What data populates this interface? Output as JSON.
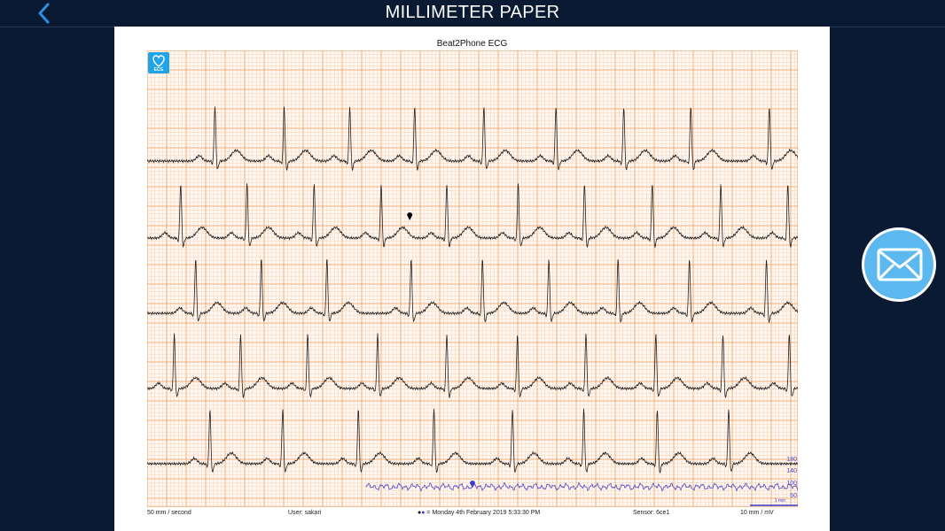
{
  "header": {
    "title": "MILLIMETER PAPER",
    "back_icon": "chevron-left-icon"
  },
  "paper": {
    "title": "Beat2Phone ECG",
    "logo_text": "ECG",
    "footer": {
      "speed": "50 mm / second",
      "user": "User: sakari",
      "datetime": "= Monday 4th February 2019 5:33:30 PM",
      "sensor": "Sensor: 6ce1",
      "gain": "10 mm / mV",
      "scale_label": "1 min"
    },
    "hr_ticks": [
      "180",
      "140",
      "100",
      "60"
    ]
  },
  "colors": {
    "grid_minor": "#f8c9a6",
    "grid_major": "#ef9a52",
    "trace": "#222222",
    "hr_trace": "#4a48c8",
    "accent": "#5db8f0",
    "background": "#0a1a33"
  },
  "mail_icon": "envelope-icon",
  "ecg_strips": [
    {
      "beats": [
        95,
        192,
        284,
        375,
        472,
        573,
        668,
        762,
        872
      ]
    },
    {
      "beats": [
        47,
        140,
        234,
        328,
        420,
        520,
        613,
        708,
        804,
        898
      ]
    },
    {
      "beats": [
        68,
        160,
        252,
        370,
        470,
        563,
        660,
        760,
        868
      ]
    },
    {
      "beats": [
        38,
        131,
        225,
        323,
        420,
        519,
        615,
        713,
        807,
        900
      ]
    },
    {
      "beats": [
        88,
        190,
        296,
        402,
        512,
        612,
        715,
        815
      ]
    }
  ],
  "marker_beat": {
    "strip": 1,
    "beat_time": 368
  }
}
